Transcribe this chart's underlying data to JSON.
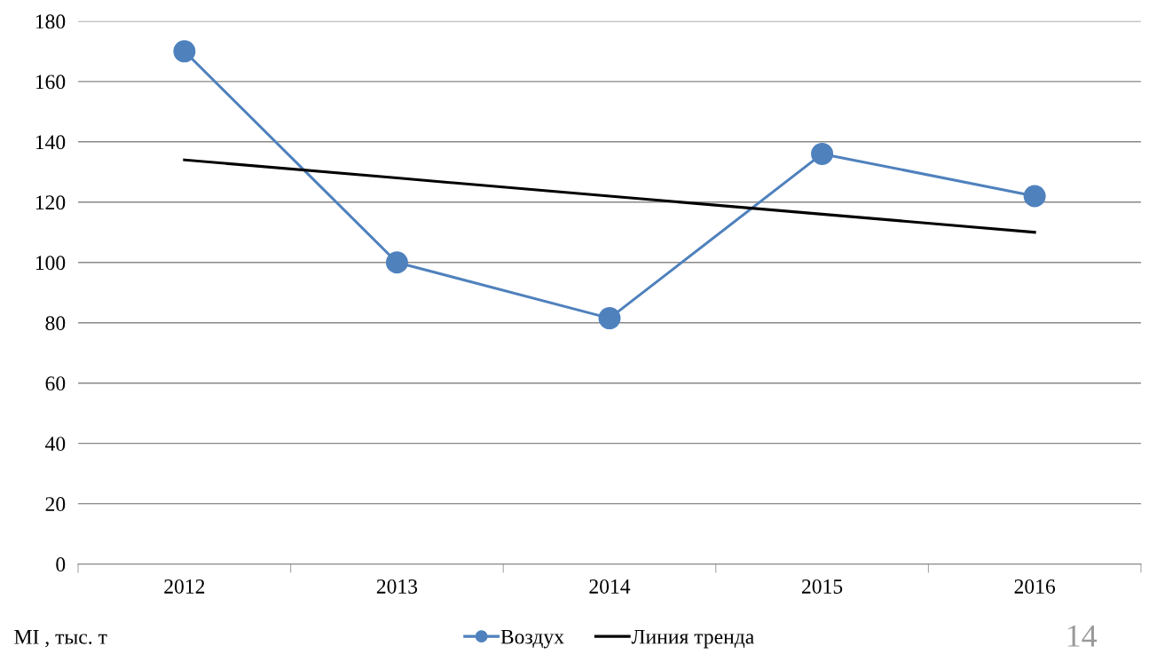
{
  "chart_data": {
    "type": "line",
    "categories": [
      "2012",
      "2013",
      "2014",
      "2015",
      "2016"
    ],
    "series": [
      {
        "name": "Воздух",
        "color": "#4f81bd",
        "values": [
          170,
          100,
          81.5,
          136,
          122
        ],
        "marker": "circle"
      },
      {
        "name": "Линия тренда",
        "color": "#000000",
        "values": [
          134,
          128,
          122,
          116,
          110
        ]
      }
    ],
    "ylim": [
      0,
      180
    ],
    "yticks": [
      0,
      20,
      40,
      60,
      80,
      100,
      120,
      140,
      160,
      180
    ],
    "grid": "y",
    "legend": "bottom",
    "annotations": [
      "MI , тыс. т",
      "14"
    ]
  }
}
